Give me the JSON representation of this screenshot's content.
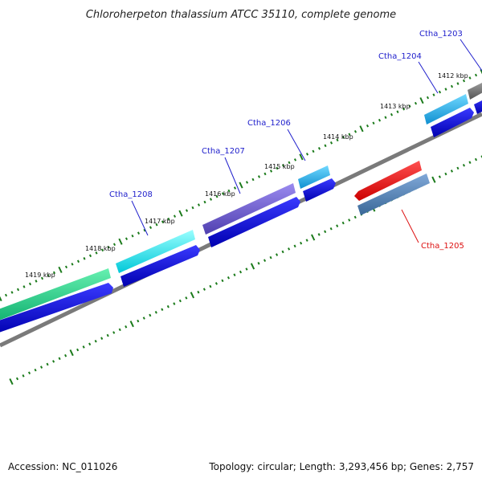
{
  "title": "Chloroherpeton thalassium ATCC 35110, complete genome",
  "footer": {
    "accession": "Accession: NC_011026",
    "summary": "Topology: circular; Length: 3,293,456 bp; Genes: 2,757"
  },
  "scale_labels": [
    "1419 kbp",
    "1418 kbp",
    "1417 kbp",
    "1416 kbp",
    "1415 kbp",
    "1414 kbp",
    "1413 kbp",
    "1412 kbp"
  ],
  "genes": [
    {
      "label": "Ctha_1208",
      "color": "#2020cc"
    },
    {
      "label": "Ctha_1207",
      "color": "#2020cc"
    },
    {
      "label": "Ctha_1206",
      "color": "#2020cc"
    },
    {
      "label": "Ctha_1204",
      "color": "#2020cc"
    },
    {
      "label": "Ctha_1203",
      "color": "#2020cc"
    },
    {
      "label": "Ctha_1205",
      "color": "#dd1111"
    }
  ],
  "colors": {
    "backbone": "#808080",
    "ticks": "#1a7a1a",
    "cds_blue": "#1010e0",
    "ctha_1205_red": "#ee1111",
    "ctha_1205_cds": "#4477aa"
  }
}
